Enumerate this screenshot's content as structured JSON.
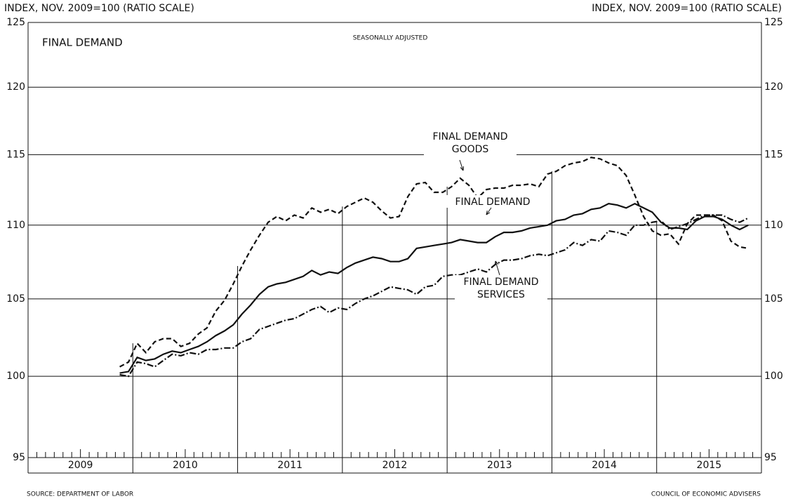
{
  "chart_data": {
    "type": "line",
    "title": "FINAL DEMAND",
    "subtitle": "SEASONALLY ADJUSTED",
    "y_label": "INDEX, NOV. 2009=100  (RATIO SCALE)",
    "y2_label": "INDEX, NOV. 2009=100  (RATIO SCALE)",
    "source": "SOURCE: DEPARTMENT OF LABOR",
    "credit": "COUNCIL OF ECONOMIC ADVISERS",
    "categories": [
      "2009",
      "2010",
      "2011",
      "2012",
      "2013",
      "2014",
      "2015"
    ],
    "x": [
      "2009-11",
      "2009-12",
      "2010-01",
      "2010-02",
      "2010-03",
      "2010-04",
      "2010-05",
      "2010-06",
      "2010-07",
      "2010-08",
      "2010-09",
      "2010-10",
      "2010-11",
      "2010-12",
      "2011-01",
      "2011-02",
      "2011-03",
      "2011-04",
      "2011-05",
      "2011-06",
      "2011-07",
      "2011-08",
      "2011-09",
      "2011-10",
      "2011-11",
      "2011-12",
      "2012-01",
      "2012-02",
      "2012-03",
      "2012-04",
      "2012-05",
      "2012-06",
      "2012-07",
      "2012-08",
      "2012-09",
      "2012-10",
      "2012-11",
      "2012-12",
      "2013-01",
      "2013-02",
      "2013-03",
      "2013-04",
      "2013-05",
      "2013-06",
      "2013-07",
      "2013-08",
      "2013-09",
      "2013-10",
      "2013-11",
      "2013-12",
      "2014-01",
      "2014-02",
      "2014-03",
      "2014-04",
      "2014-05",
      "2014-06",
      "2014-07",
      "2014-08",
      "2014-09",
      "2014-10",
      "2014-11",
      "2014-12",
      "2015-01",
      "2015-02",
      "2015-03",
      "2015-04",
      "2015-05",
      "2015-06",
      "2015-07",
      "2015-08",
      "2015-09",
      "2015-10",
      "2015-11"
    ],
    "series": [
      {
        "label": [
          "FINAL DEMAND",
          "GOODS"
        ],
        "color": "#111111",
        "dash": "7,4",
        "values": [
          100.6,
          100.9,
          102.1,
          101.5,
          102.2,
          102.4,
          102.4,
          101.9,
          102.1,
          102.7,
          103.1,
          104.2,
          104.9,
          106.0,
          107.2,
          108.3,
          109.3,
          110.2,
          110.6,
          110.3,
          110.7,
          110.5,
          111.2,
          110.9,
          111.1,
          110.8,
          111.3,
          111.6,
          111.9,
          111.6,
          111.0,
          110.5,
          110.6,
          112.0,
          112.9,
          113.0,
          112.3,
          112.3,
          112.7,
          113.3,
          112.8,
          111.9,
          112.5,
          112.6,
          112.6,
          112.8,
          112.8,
          112.9,
          112.7,
          113.6,
          113.8,
          114.2,
          114.4,
          114.5,
          114.8,
          114.7,
          114.4,
          114.2,
          113.5,
          112.1,
          110.6,
          109.6,
          109.3,
          109.4,
          108.7,
          110.1,
          110.7,
          110.7,
          110.7,
          110.3,
          108.9,
          108.5,
          108.4
        ]
      },
      {
        "label": [
          "FINAL DEMAND"
        ],
        "color": "#111111",
        "dash": "none",
        "values": [
          100.2,
          100.3,
          101.2,
          101.0,
          101.1,
          101.4,
          101.6,
          101.5,
          101.7,
          101.9,
          102.2,
          102.6,
          102.9,
          103.3,
          104.0,
          104.6,
          105.3,
          105.8,
          106.0,
          106.1,
          106.3,
          106.5,
          106.9,
          106.6,
          106.8,
          106.7,
          107.1,
          107.4,
          107.6,
          107.8,
          107.7,
          107.5,
          107.5,
          107.7,
          108.4,
          108.5,
          108.6,
          108.7,
          108.8,
          109.0,
          108.9,
          108.8,
          108.8,
          109.2,
          109.5,
          109.5,
          109.6,
          109.8,
          109.9,
          110.0,
          110.3,
          110.4,
          110.7,
          110.8,
          111.1,
          111.2,
          111.5,
          111.4,
          111.2,
          111.5,
          111.2,
          110.9,
          110.2,
          109.8,
          109.8,
          109.7,
          110.3,
          110.6,
          110.6,
          110.4,
          110.0,
          109.7,
          110.0
        ]
      },
      {
        "label": [
          "FINAL DEMAND",
          "SERVICES"
        ],
        "color": "#111111",
        "dash": "9,3,2,3",
        "values": [
          100.1,
          100.0,
          100.9,
          100.8,
          100.6,
          101.0,
          101.4,
          101.3,
          101.5,
          101.4,
          101.7,
          101.7,
          101.8,
          101.8,
          102.2,
          102.4,
          103.0,
          103.2,
          103.4,
          103.6,
          103.7,
          104.0,
          104.3,
          104.5,
          104.1,
          104.4,
          104.3,
          104.7,
          105.0,
          105.2,
          105.5,
          105.8,
          105.7,
          105.6,
          105.3,
          105.8,
          105.9,
          106.5,
          106.6,
          106.6,
          106.8,
          107.0,
          106.8,
          107.3,
          107.6,
          107.6,
          107.7,
          107.9,
          108.0,
          107.9,
          108.1,
          108.3,
          108.8,
          108.6,
          109.0,
          108.9,
          109.6,
          109.5,
          109.3,
          110.0,
          110.0,
          110.2,
          110.3,
          109.7,
          109.9,
          110.1,
          110.4,
          110.7,
          110.7,
          110.7,
          110.4,
          110.2,
          110.5
        ]
      }
    ],
    "ylim": [
      95,
      125
    ],
    "yticks": [
      95,
      100,
      105,
      110,
      115,
      120,
      125
    ],
    "y2lim": [
      95,
      125
    ],
    "y2ticks": [
      95,
      100,
      105,
      110,
      115,
      120,
      125
    ],
    "log_scale": true,
    "grid": true
  }
}
